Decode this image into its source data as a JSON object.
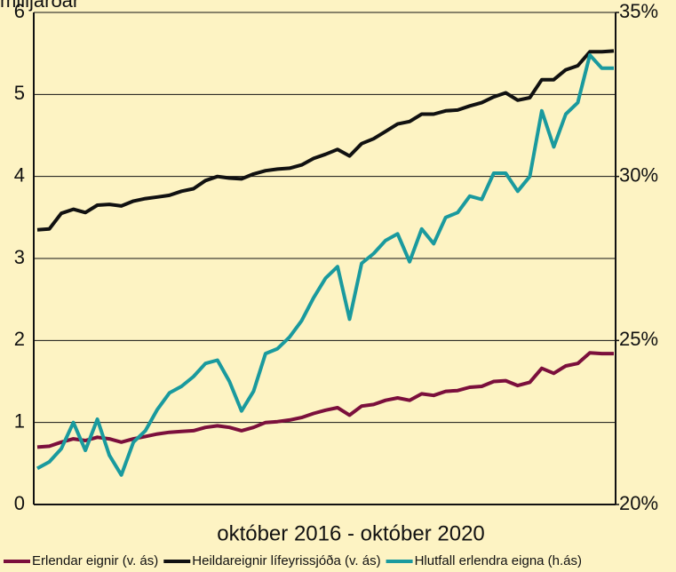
{
  "chart_data": {
    "type": "line",
    "y_label": "milljarðar",
    "x_label": "október 2016 - október 2020",
    "categories": [
      null,
      null,
      null,
      null,
      null,
      null,
      null,
      null,
      null,
      null,
      null,
      null,
      null,
      null,
      null,
      null,
      null,
      null,
      null,
      null,
      null,
      null,
      null,
      null,
      null,
      null,
      null,
      null,
      null,
      null,
      null,
      null,
      null,
      null,
      null,
      null,
      null,
      null,
      null,
      null,
      null,
      null,
      null,
      null,
      null,
      null,
      null,
      null,
      null
    ],
    "ylim": [
      0,
      6
    ],
    "yticks": [
      0,
      1,
      2,
      3,
      4,
      5,
      6
    ],
    "y2lim": [
      20,
      35
    ],
    "y2ticks": [
      {
        "value": 20,
        "label": "20%"
      },
      {
        "value": 25,
        "label": "25%"
      },
      {
        "value": 30,
        "label": "30%"
      },
      {
        "value": 35,
        "label": "35%"
      }
    ],
    "grid": true,
    "legend": "bottom",
    "series": [
      {
        "name": "Erlendar eignir (v. ás)",
        "color": "#7b0f3c",
        "values": [
          0.7,
          0.71,
          0.76,
          0.8,
          0.78,
          0.82,
          0.8,
          0.76,
          0.8,
          0.83,
          0.86,
          0.88,
          0.89,
          0.9,
          0.94,
          0.96,
          0.94,
          0.9,
          0.94,
          1.0,
          1.01,
          1.03,
          1.06,
          1.11,
          1.15,
          1.18,
          1.09,
          1.2,
          1.22,
          1.27,
          1.3,
          1.27,
          1.35,
          1.33,
          1.38,
          1.39,
          1.43,
          1.44,
          1.5,
          1.51,
          1.45,
          1.49,
          1.66,
          1.6,
          1.69,
          1.72,
          1.85,
          1.84,
          1.84
        ]
      },
      {
        "name": "Heildareignir lífeyrissjóða (v. ás)",
        "color": "#111111",
        "values": [
          3.35,
          3.36,
          3.55,
          3.6,
          3.56,
          3.65,
          3.66,
          3.64,
          3.7,
          3.73,
          3.75,
          3.77,
          3.82,
          3.85,
          3.95,
          4.0,
          3.98,
          3.97,
          4.03,
          4.07,
          4.09,
          4.1,
          4.14,
          4.22,
          4.27,
          4.33,
          4.25,
          4.4,
          4.46,
          4.55,
          4.64,
          4.67,
          4.76,
          4.76,
          4.8,
          4.81,
          4.86,
          4.9,
          4.97,
          5.02,
          4.93,
          4.96,
          5.18,
          5.18,
          5.3,
          5.35,
          5.52,
          5.52,
          5.53
        ]
      },
      {
        "name": "Hlutfall erlendra eigna (h.ás)",
        "color": "#1a9a9e",
        "axis": "y2",
        "values": [
          21.1,
          21.3,
          21.7,
          22.5,
          21.65,
          22.6,
          21.5,
          20.9,
          21.9,
          22.25,
          22.9,
          23.4,
          23.6,
          23.9,
          24.3,
          24.4,
          23.75,
          22.85,
          23.45,
          24.6,
          24.75,
          25.1,
          25.6,
          26.3,
          26.9,
          27.25,
          25.65,
          27.35,
          27.65,
          28.05,
          28.25,
          27.4,
          28.4,
          27.95,
          28.75,
          28.9,
          29.4,
          29.3,
          30.1,
          30.1,
          29.55,
          30.0,
          32.0,
          30.9,
          31.9,
          32.25,
          33.7,
          33.3,
          33.3
        ]
      }
    ]
  }
}
